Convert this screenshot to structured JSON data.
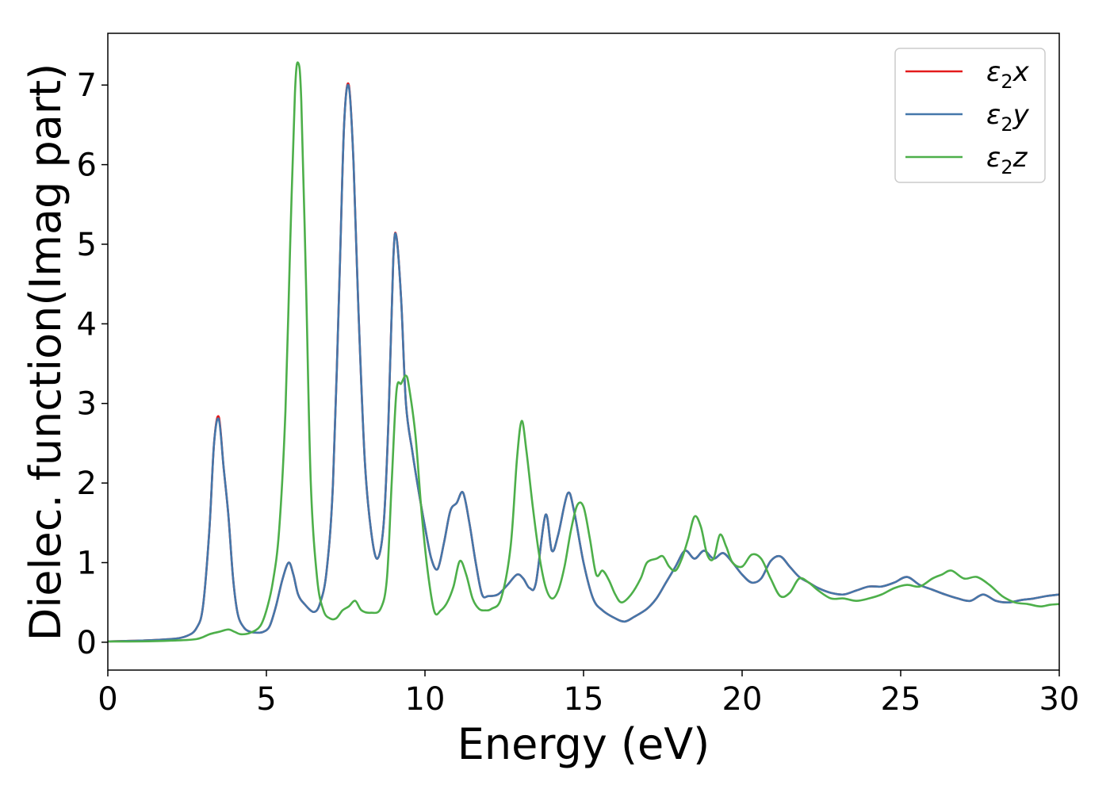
{
  "chart_data": {
    "type": "line",
    "title": "",
    "xlabel": "Energy (eV)",
    "ylabel": "Dielec. function(Imag part)",
    "xlim": [
      0,
      30
    ],
    "ylim": [
      -0.35,
      7.65
    ],
    "xticks": [
      0,
      5,
      10,
      15,
      20,
      25,
      30
    ],
    "yticks": [
      0,
      1,
      2,
      3,
      4,
      5,
      6,
      7
    ],
    "grid": false,
    "legend": "top-right",
    "series": [
      {
        "name": "ε2x",
        "legend_base": "ε",
        "legend_sub": "2",
        "legend_var": "x",
        "color": "#e41a1c",
        "x": [
          0,
          1,
          2,
          2.5,
          2.8,
          3.0,
          3.2,
          3.35,
          3.5,
          3.65,
          3.8,
          3.95,
          4.1,
          4.3,
          4.5,
          4.7,
          4.9,
          5.1,
          5.3,
          5.5,
          5.7,
          5.85,
          6.0,
          6.2,
          6.5,
          6.7,
          6.9,
          7.1,
          7.3,
          7.45,
          7.6,
          7.75,
          7.9,
          8.1,
          8.3,
          8.5,
          8.7,
          8.85,
          9.0,
          9.1,
          9.25,
          9.4,
          9.6,
          9.8,
          10.0,
          10.2,
          10.4,
          10.6,
          10.8,
          11.0,
          11.2,
          11.4,
          11.6,
          11.8,
          12.0,
          12.3,
          12.6,
          12.9,
          13.1,
          13.3,
          13.5,
          13.8,
          14.0,
          14.2,
          14.5,
          14.7,
          15.0,
          15.3,
          15.6,
          16.0,
          16.3,
          16.6,
          17.0,
          17.3,
          17.6,
          17.9,
          18.2,
          18.5,
          18.8,
          19.1,
          19.4,
          19.7,
          20.0,
          20.3,
          20.6,
          20.9,
          21.2,
          21.5,
          21.8,
          22.1,
          22.4,
          22.8,
          23.2,
          23.6,
          24.0,
          24.4,
          24.8,
          25.2,
          25.6,
          26.0,
          26.4,
          26.8,
          27.2,
          27.6,
          28.0,
          28.4,
          28.8,
          29.2,
          29.6,
          30.0
        ],
        "y": [
          0.01,
          0.02,
          0.04,
          0.08,
          0.18,
          0.45,
          1.4,
          2.5,
          2.83,
          2.2,
          1.6,
          0.8,
          0.35,
          0.18,
          0.13,
          0.12,
          0.13,
          0.2,
          0.45,
          0.78,
          1.0,
          0.85,
          0.6,
          0.48,
          0.38,
          0.5,
          0.9,
          2.0,
          4.5,
          6.5,
          7.0,
          6.0,
          4.2,
          2.3,
          1.4,
          1.05,
          1.5,
          2.8,
          4.8,
          5.1,
          4.3,
          3.0,
          2.4,
          1.9,
          1.45,
          1.05,
          0.92,
          1.25,
          1.65,
          1.75,
          1.88,
          1.5,
          1.0,
          0.6,
          0.58,
          0.6,
          0.72,
          0.85,
          0.8,
          0.68,
          0.75,
          1.6,
          1.15,
          1.35,
          1.87,
          1.65,
          1.0,
          0.55,
          0.4,
          0.3,
          0.26,
          0.32,
          0.42,
          0.55,
          0.75,
          0.95,
          1.15,
          1.05,
          1.15,
          1.05,
          1.12,
          1.0,
          0.85,
          0.75,
          0.8,
          1.02,
          1.08,
          0.95,
          0.82,
          0.75,
          0.68,
          0.62,
          0.6,
          0.65,
          0.7,
          0.7,
          0.75,
          0.82,
          0.72,
          0.66,
          0.6,
          0.55,
          0.52,
          0.6,
          0.52,
          0.5,
          0.53,
          0.55,
          0.58,
          0.6
        ]
      },
      {
        "name": "ε2y",
        "legend_base": "ε",
        "legend_sub": "2",
        "legend_var": "y",
        "color": "#4477aa",
        "x": [
          0,
          1,
          2,
          2.5,
          2.8,
          3.0,
          3.2,
          3.35,
          3.5,
          3.65,
          3.8,
          3.95,
          4.1,
          4.3,
          4.5,
          4.7,
          4.9,
          5.1,
          5.3,
          5.5,
          5.7,
          5.85,
          6.0,
          6.2,
          6.5,
          6.7,
          6.9,
          7.1,
          7.3,
          7.45,
          7.6,
          7.75,
          7.9,
          8.1,
          8.3,
          8.5,
          8.7,
          8.85,
          9.0,
          9.1,
          9.25,
          9.4,
          9.6,
          9.8,
          10.0,
          10.2,
          10.4,
          10.6,
          10.8,
          11.0,
          11.2,
          11.4,
          11.6,
          11.8,
          12.0,
          12.3,
          12.6,
          12.9,
          13.1,
          13.3,
          13.5,
          13.8,
          14.0,
          14.2,
          14.5,
          14.7,
          15.0,
          15.3,
          15.6,
          16.0,
          16.3,
          16.6,
          17.0,
          17.3,
          17.6,
          17.9,
          18.2,
          18.5,
          18.8,
          19.1,
          19.4,
          19.7,
          20.0,
          20.3,
          20.6,
          20.9,
          21.2,
          21.5,
          21.8,
          22.1,
          22.4,
          22.8,
          23.2,
          23.6,
          24.0,
          24.4,
          24.8,
          25.2,
          25.6,
          26.0,
          26.4,
          26.8,
          27.2,
          27.6,
          28.0,
          28.4,
          28.8,
          29.2,
          29.6,
          30.0
        ],
        "y": [
          0.01,
          0.02,
          0.04,
          0.08,
          0.18,
          0.45,
          1.4,
          2.5,
          2.8,
          2.2,
          1.6,
          0.8,
          0.35,
          0.18,
          0.13,
          0.12,
          0.13,
          0.2,
          0.45,
          0.78,
          1.0,
          0.85,
          0.6,
          0.48,
          0.38,
          0.5,
          0.9,
          2.0,
          4.5,
          6.5,
          6.98,
          6.0,
          4.2,
          2.3,
          1.4,
          1.05,
          1.5,
          2.8,
          4.8,
          5.09,
          4.3,
          3.0,
          2.4,
          1.9,
          1.45,
          1.05,
          0.92,
          1.25,
          1.65,
          1.75,
          1.88,
          1.5,
          1.0,
          0.6,
          0.58,
          0.6,
          0.72,
          0.85,
          0.8,
          0.68,
          0.75,
          1.6,
          1.15,
          1.35,
          1.87,
          1.65,
          1.0,
          0.55,
          0.4,
          0.3,
          0.26,
          0.32,
          0.42,
          0.55,
          0.75,
          0.95,
          1.15,
          1.05,
          1.15,
          1.05,
          1.12,
          1.0,
          0.85,
          0.75,
          0.8,
          1.02,
          1.08,
          0.95,
          0.82,
          0.75,
          0.68,
          0.62,
          0.6,
          0.65,
          0.7,
          0.7,
          0.75,
          0.82,
          0.72,
          0.66,
          0.6,
          0.55,
          0.52,
          0.6,
          0.52,
          0.5,
          0.53,
          0.55,
          0.58,
          0.6
        ]
      },
      {
        "name": "ε2z",
        "legend_base": "ε",
        "legend_sub": "2",
        "legend_var": "z",
        "color": "#4daf4a",
        "x": [
          0,
          1,
          2,
          2.8,
          3.2,
          3.5,
          3.8,
          4.0,
          4.2,
          4.5,
          4.8,
          5.0,
          5.2,
          5.4,
          5.6,
          5.75,
          5.9,
          6.0,
          6.1,
          6.25,
          6.4,
          6.6,
          6.8,
          7.0,
          7.2,
          7.4,
          7.6,
          7.8,
          8.0,
          8.3,
          8.6,
          8.8,
          8.95,
          9.1,
          9.25,
          9.4,
          9.5,
          9.7,
          9.9,
          10.1,
          10.3,
          10.5,
          10.7,
          10.9,
          11.1,
          11.3,
          11.5,
          11.7,
          11.9,
          12.1,
          12.4,
          12.7,
          12.9,
          13.05,
          13.2,
          13.4,
          13.6,
          13.8,
          14.0,
          14.2,
          14.4,
          14.6,
          14.8,
          15.0,
          15.2,
          15.4,
          15.6,
          15.8,
          16.0,
          16.2,
          16.5,
          16.8,
          17.0,
          17.3,
          17.5,
          17.7,
          17.9,
          18.1,
          18.3,
          18.5,
          18.7,
          18.9,
          19.1,
          19.3,
          19.5,
          19.7,
          20.0,
          20.3,
          20.6,
          20.9,
          21.2,
          21.5,
          21.8,
          22.1,
          22.4,
          22.8,
          23.2,
          23.6,
          24.0,
          24.4,
          24.8,
          25.2,
          25.6,
          26.0,
          26.3,
          26.6,
          27.0,
          27.4,
          27.8,
          28.2,
          28.6,
          29.0,
          29.4,
          29.7,
          30.0
        ],
        "y": [
          0.01,
          0.01,
          0.02,
          0.04,
          0.1,
          0.13,
          0.16,
          0.13,
          0.1,
          0.12,
          0.2,
          0.4,
          0.75,
          1.4,
          2.9,
          5.0,
          6.9,
          7.28,
          6.8,
          4.5,
          2.0,
          0.8,
          0.4,
          0.3,
          0.3,
          0.4,
          0.45,
          0.52,
          0.4,
          0.37,
          0.42,
          0.8,
          2.0,
          3.15,
          3.25,
          3.35,
          3.2,
          2.6,
          1.6,
          0.85,
          0.38,
          0.4,
          0.5,
          0.7,
          1.02,
          0.85,
          0.55,
          0.42,
          0.4,
          0.42,
          0.55,
          1.2,
          2.3,
          2.78,
          2.4,
          1.7,
          1.1,
          0.7,
          0.55,
          0.65,
          0.95,
          1.4,
          1.72,
          1.7,
          1.3,
          0.85,
          0.9,
          0.78,
          0.6,
          0.5,
          0.6,
          0.8,
          1.0,
          1.05,
          1.08,
          0.95,
          0.9,
          1.05,
          1.3,
          1.58,
          1.45,
          1.1,
          1.05,
          1.35,
          1.2,
          1.0,
          0.95,
          1.1,
          1.05,
          0.8,
          0.58,
          0.62,
          0.8,
          0.75,
          0.65,
          0.55,
          0.55,
          0.52,
          0.55,
          0.6,
          0.68,
          0.72,
          0.7,
          0.8,
          0.85,
          0.9,
          0.8,
          0.82,
          0.72,
          0.58,
          0.5,
          0.48,
          0.45,
          0.47,
          0.48
        ]
      }
    ]
  }
}
